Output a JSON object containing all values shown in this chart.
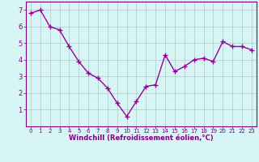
{
  "x": [
    0,
    1,
    2,
    3,
    4,
    5,
    6,
    7,
    8,
    9,
    10,
    11,
    12,
    13,
    14,
    15,
    16,
    17,
    18,
    19,
    20,
    21,
    22,
    23
  ],
  "y": [
    6.8,
    7.0,
    6.0,
    5.8,
    4.8,
    3.9,
    3.2,
    2.9,
    2.3,
    1.4,
    0.6,
    1.5,
    2.4,
    2.5,
    4.3,
    3.3,
    3.6,
    4.0,
    4.1,
    3.9,
    5.1,
    4.8,
    4.8,
    4.6
  ],
  "line_color": "#990099",
  "marker": "+",
  "marker_size": 4,
  "bg_color": "#d8f5f5",
  "grid_color": "#b0c8c8",
  "xlabel": "Windchill (Refroidissement éolien,°C)",
  "xlim": [
    -0.5,
    23.5
  ],
  "ylim": [
    0,
    7.5
  ],
  "yticks": [
    1,
    2,
    3,
    4,
    5,
    6,
    7
  ],
  "xticks": [
    0,
    1,
    2,
    3,
    4,
    5,
    6,
    7,
    8,
    9,
    10,
    11,
    12,
    13,
    14,
    15,
    16,
    17,
    18,
    19,
    20,
    21,
    22,
    23
  ],
  "tick_color": "#800080",
  "label_color": "#800080",
  "line_width": 1.0,
  "marker_color": "#990099"
}
